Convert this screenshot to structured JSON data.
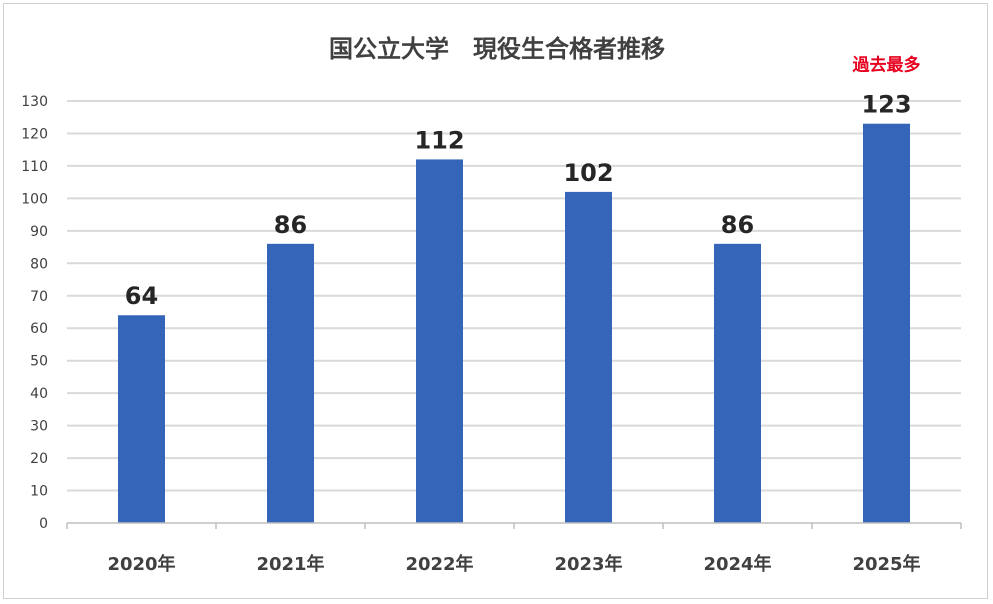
{
  "chart_data": {
    "type": "bar",
    "title": "国公立大学　現役生合格者推移",
    "categories": [
      "2020年",
      "2021年",
      "2022年",
      "2023年",
      "2024年",
      "2025年"
    ],
    "values": [
      64,
      86,
      112,
      102,
      86,
      123
    ],
    "ylim": [
      0,
      130
    ],
    "yticks": [
      0,
      10,
      20,
      30,
      40,
      50,
      60,
      70,
      80,
      90,
      100,
      110,
      120,
      130
    ],
    "grid": true,
    "legend": "none",
    "bar_color": "#3465b8",
    "annotation": {
      "text": "過去最多",
      "category": "2025年",
      "color": "#e8001f"
    }
  }
}
